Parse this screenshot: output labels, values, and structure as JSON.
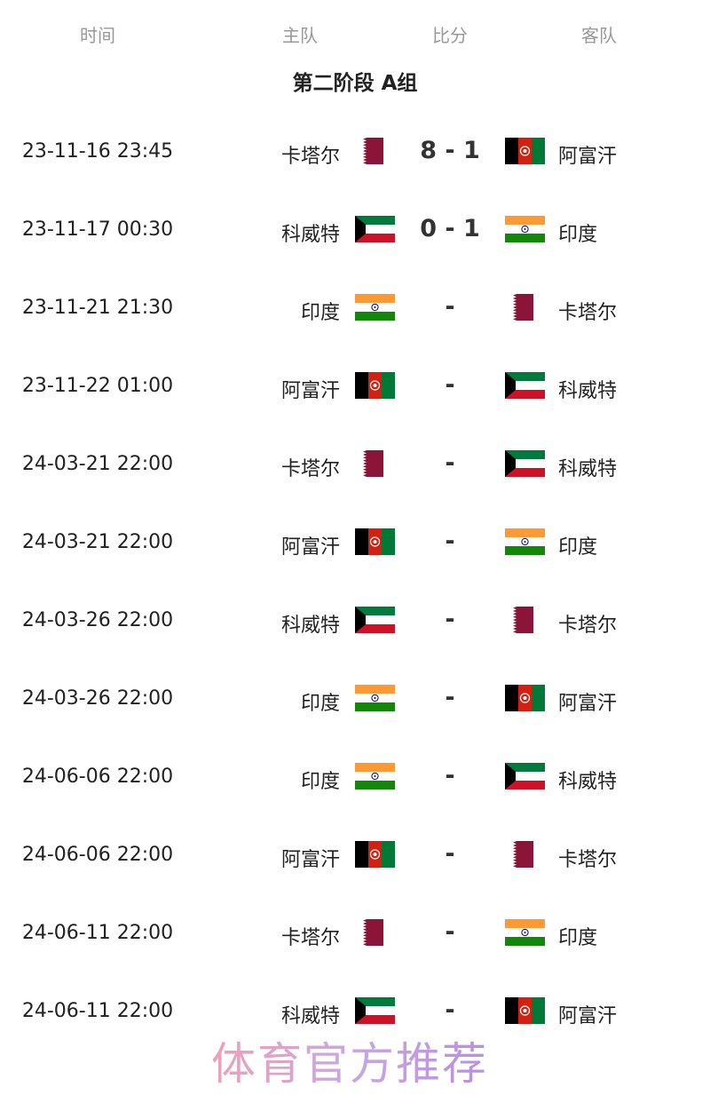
{
  "header": {
    "time": "时间",
    "home": "主队",
    "score": "比分",
    "away": "客队"
  },
  "group_title": "第二阶段 A组",
  "flag_icons": {
    "卡塔尔": "qatar",
    "阿富汗": "afghanistan",
    "科威特": "kuwait",
    "印度": "india"
  },
  "matches": [
    {
      "time": "23-11-16 23:45",
      "home": "卡塔尔",
      "score": "8 - 1",
      "away": "阿富汗"
    },
    {
      "time": "23-11-17 00:30",
      "home": "科威特",
      "score": "0 - 1",
      "away": "印度"
    },
    {
      "time": "23-11-21 21:30",
      "home": "印度",
      "score": "-",
      "away": "卡塔尔"
    },
    {
      "time": "23-11-22 01:00",
      "home": "阿富汗",
      "score": "-",
      "away": "科威特"
    },
    {
      "time": "24-03-21 22:00",
      "home": "卡塔尔",
      "score": "-",
      "away": "科威特"
    },
    {
      "time": "24-03-21 22:00",
      "home": "阿富汗",
      "score": "-",
      "away": "印度"
    },
    {
      "time": "24-03-26 22:00",
      "home": "科威特",
      "score": "-",
      "away": "卡塔尔"
    },
    {
      "time": "24-03-26 22:00",
      "home": "印度",
      "score": "-",
      "away": "阿富汗"
    },
    {
      "time": "24-06-06 22:00",
      "home": "印度",
      "score": "-",
      "away": "科威特"
    },
    {
      "time": "24-06-06 22:00",
      "home": "阿富汗",
      "score": "-",
      "away": "卡塔尔"
    },
    {
      "time": "24-06-11 22:00",
      "home": "卡塔尔",
      "score": "-",
      "away": "印度"
    },
    {
      "time": "24-06-11 22:00",
      "home": "科威特",
      "score": "-",
      "away": "阿富汗"
    }
  ],
  "watermark": "体育官方推荐"
}
